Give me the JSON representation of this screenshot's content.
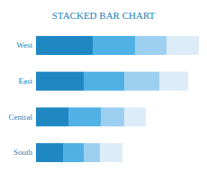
{
  "chart_data": {
    "type": "bar",
    "title": "STACKED BAR CHART",
    "orientation": "horizontal",
    "stacked": true,
    "tick_labels": "y",
    "grid": false,
    "categories": [
      "West",
      "East",
      "Central",
      "South"
    ],
    "xlim": [
      0,
      181
    ],
    "series": [
      {
        "color": "#1f88c2",
        "values": [
          63,
          53,
          36,
          30
        ]
      },
      {
        "color": "#50b1e4",
        "values": [
          47,
          45,
          36,
          23
        ]
      },
      {
        "color": "#9dd0f0",
        "values": [
          35,
          39,
          26,
          18
        ]
      },
      {
        "color": "#dcecf8",
        "values": [
          36,
          32,
          24,
          25
        ]
      }
    ]
  }
}
